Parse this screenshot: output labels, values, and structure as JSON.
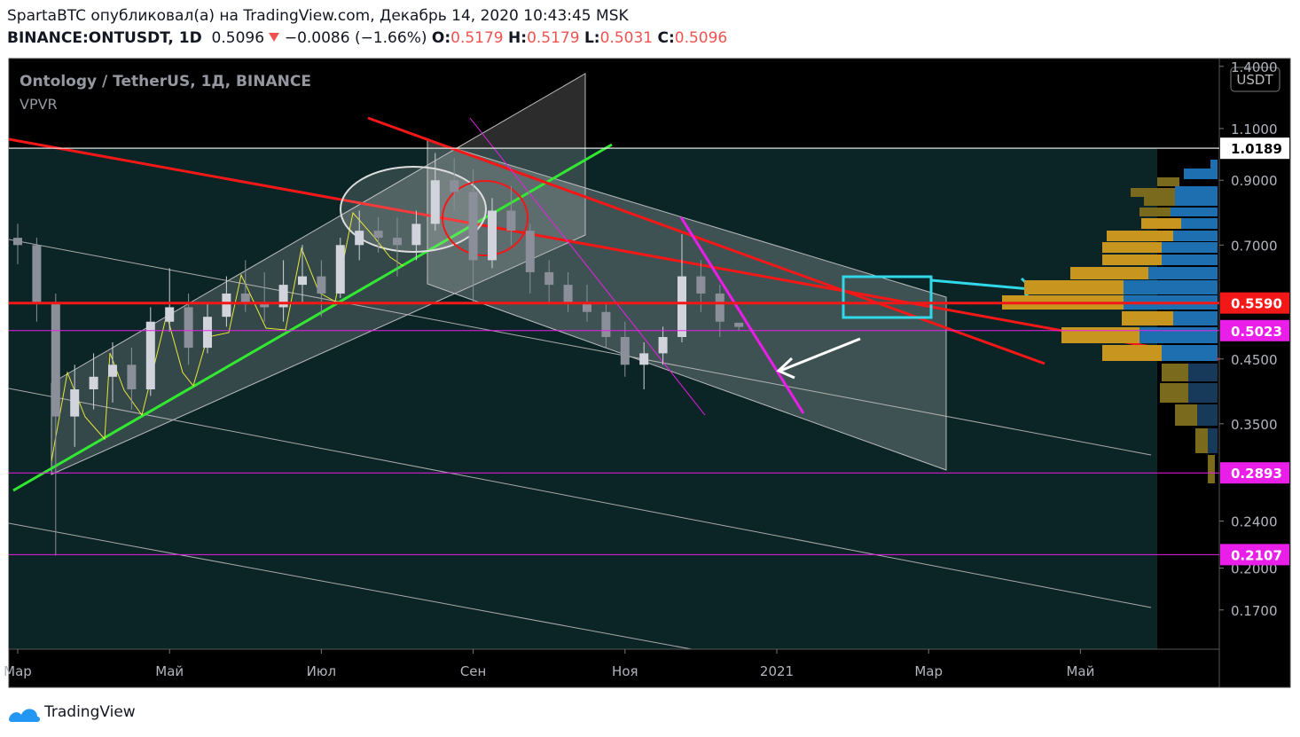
{
  "header": {
    "author_line": "SpartaBTC опубликовал(а) на TradingView.com, Декабрь 14, 2020 10:43:45 MSK",
    "symbol": "BINANCE:ONTUSDT, 1D",
    "last": "0.5096",
    "change": "−0.0086 (−1.66%)",
    "o_label": "O:",
    "o_value": "0.5179",
    "h_label": "H:",
    "h_value": "0.5179",
    "l_label": "L:",
    "l_value": "0.5031",
    "c_label": "C:",
    "c_value": "0.5096"
  },
  "footer": {
    "brand": "TradingView"
  },
  "chart_data": {
    "type": "candlestick",
    "title": "Ontology / TetherUS, 1Д, BINANCE",
    "indicator": "VPVR",
    "currency": "USDT",
    "log_scale": true,
    "up_color": "#d1d4dc",
    "down_color": "#8a8f99",
    "categories": [
      "Мар",
      null,
      null,
      null,
      null,
      null,
      null,
      null,
      "Май",
      null,
      null,
      null,
      null,
      null,
      null,
      null,
      "Июл",
      null,
      null,
      null,
      null,
      null,
      null,
      null,
      "Сен",
      null,
      null,
      null,
      null,
      null,
      null,
      null,
      "Ноя",
      null,
      null,
      null,
      null,
      null,
      null,
      null,
      "2021",
      null,
      null,
      null,
      null,
      null,
      null,
      null,
      "Мар",
      null,
      null,
      null,
      null,
      null,
      null,
      null,
      "Май",
      null,
      null,
      null,
      null,
      null,
      null,
      null
    ],
    "open": [
      0.72,
      0.7,
      0.56,
      0.36,
      0.4,
      0.42,
      0.44,
      0.4,
      0.52,
      0.55,
      0.47,
      0.53,
      0.58,
      0.56,
      0.55,
      0.6,
      0.62,
      0.58,
      0.7,
      0.74,
      0.72,
      0.7,
      0.76,
      0.9,
      0.86,
      0.66,
      0.8,
      0.74,
      0.63,
      0.6,
      0.56,
      0.54,
      0.49,
      0.44,
      0.46,
      0.49,
      0.62,
      0.58,
      0.5179,
      null,
      null,
      null,
      null,
      null,
      null,
      null,
      null,
      null,
      null,
      null,
      null,
      null,
      null,
      null,
      null,
      null,
      null,
      null,
      null,
      null,
      null,
      null,
      null,
      null
    ],
    "high": [
      0.76,
      0.72,
      0.58,
      0.44,
      0.46,
      0.48,
      0.47,
      0.55,
      0.64,
      0.58,
      0.56,
      0.62,
      0.66,
      0.63,
      0.66,
      0.7,
      0.66,
      0.72,
      0.8,
      0.78,
      0.78,
      0.8,
      1.0,
      0.98,
      0.94,
      0.84,
      0.88,
      0.76,
      0.66,
      0.63,
      0.6,
      0.56,
      0.52,
      0.48,
      0.51,
      0.73,
      0.66,
      0.6,
      0.5179,
      null,
      null,
      null,
      null,
      null,
      null,
      null,
      null,
      null,
      null,
      null,
      null,
      null,
      null,
      null,
      null,
      null,
      null,
      null,
      null,
      null,
      null,
      null,
      null,
      null
    ],
    "low": [
      0.65,
      0.52,
      0.21,
      0.32,
      0.37,
      0.38,
      0.37,
      0.39,
      0.5,
      0.44,
      0.46,
      0.51,
      0.54,
      0.52,
      0.52,
      0.56,
      0.53,
      0.57,
      0.66,
      0.68,
      0.62,
      0.66,
      0.74,
      0.8,
      0.56,
      0.64,
      0.7,
      0.58,
      0.56,
      0.54,
      0.52,
      0.47,
      0.42,
      0.4,
      0.44,
      0.48,
      0.54,
      0.49,
      0.5031,
      null,
      null,
      null,
      null,
      null,
      null,
      null,
      null,
      null,
      null,
      null,
      null,
      null,
      null,
      null,
      null,
      null,
      null,
      null,
      null,
      null,
      null,
      null,
      null,
      null
    ],
    "close": [
      0.7,
      0.56,
      0.36,
      0.4,
      0.42,
      0.44,
      0.4,
      0.52,
      0.55,
      0.47,
      0.53,
      0.58,
      0.56,
      0.55,
      0.6,
      0.62,
      0.58,
      0.7,
      0.74,
      0.72,
      0.7,
      0.76,
      0.9,
      0.86,
      0.66,
      0.8,
      0.74,
      0.63,
      0.6,
      0.56,
      0.54,
      0.49,
      0.44,
      0.46,
      0.49,
      0.62,
      0.58,
      0.52,
      0.5096,
      null,
      null,
      null,
      null,
      null,
      null,
      null,
      null,
      null,
      null,
      null,
      null,
      null,
      null,
      null,
      null,
      null,
      null,
      null,
      null,
      null,
      null,
      null,
      null,
      null
    ],
    "ylim": [
      0.146,
      1.443
    ],
    "yticks": [
      {
        "value": 1.4,
        "label": "1.4000"
      },
      {
        "value": 1.1,
        "label": "1.1000"
      },
      {
        "value": 0.9,
        "label": "0.9000"
      },
      {
        "value": 0.7,
        "label": "0.7000"
      },
      {
        "value": 0.45,
        "label": "0.4500"
      },
      {
        "value": 0.35,
        "label": "0.3500"
      },
      {
        "value": 0.24,
        "label": "0.2400"
      },
      {
        "value": 0.2,
        "label": "0.2000"
      },
      {
        "value": 0.17,
        "label": "0.1700"
      }
    ],
    "price_lines": [
      {
        "value": 1.0189,
        "label": "1.0189",
        "color": "#ffffff"
      },
      {
        "value": 0.559,
        "label": "0.5590",
        "color": "#f21818"
      },
      {
        "value": 0.5023,
        "label": "0.5023",
        "color": "#e91ee9"
      },
      {
        "value": 0.2893,
        "label": "0.2893",
        "color": "#e91ee9"
      },
      {
        "value": 0.2107,
        "label": "0.2107",
        "color": "#e91ee9"
      }
    ]
  }
}
